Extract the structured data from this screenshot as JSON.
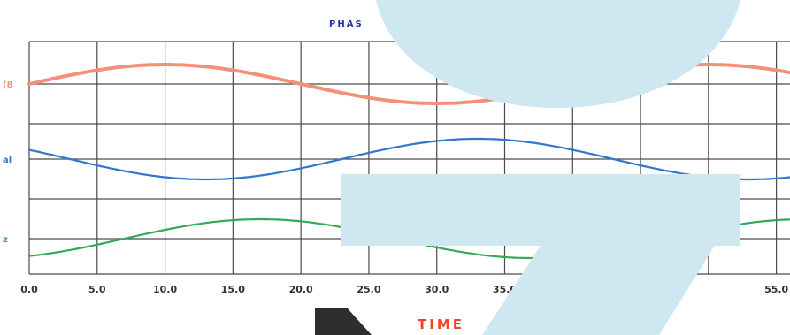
{
  "chart_data": {
    "type": "line",
    "title": "PHAS",
    "title_tail": "…",
    "xlabel": "TIME",
    "xlim": [
      0,
      56
    ],
    "x_ticks": [
      0,
      5,
      10,
      15,
      20,
      25,
      30,
      35,
      40,
      45,
      50,
      55
    ],
    "x_tick_labels": [
      "0.0",
      "5.0",
      "10.0",
      "15.0",
      "20.0",
      "25.0",
      "30.0",
      "35.0",
      "",
      "",
      "",
      "55.0"
    ],
    "grid": true,
    "colors": {
      "title": "#2233aa",
      "xlabel": "#ee4422",
      "ticks": "#333333",
      "grid": "#4a4a4a",
      "series": [
        "#f4907a",
        "#3377cc",
        "#33aa55"
      ],
      "overlay": "#cfe7f0",
      "dark_corner": "#2e2e2e"
    },
    "series": [
      {
        "label": "(8",
        "period": 40,
        "phase": 0,
        "offset": 0,
        "amplitude": 1
      },
      {
        "label": "al",
        "period": 40,
        "phase": -17,
        "offset": 0,
        "amplitude": 1
      },
      {
        "label": "z",
        "period": 40,
        "phase": -33,
        "offset": 0,
        "amplitude": 1
      }
    ]
  }
}
